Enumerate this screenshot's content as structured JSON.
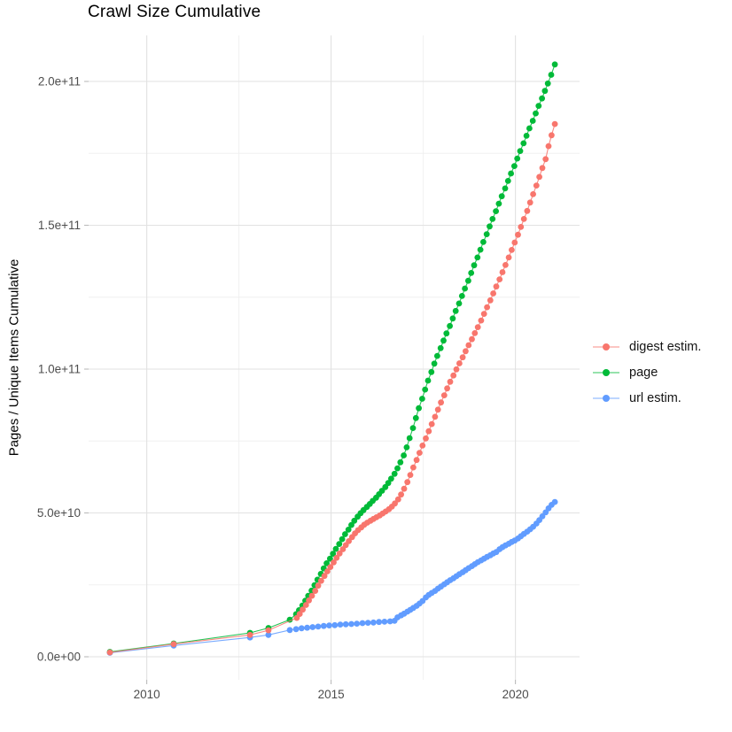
{
  "chart": {
    "title": "Crawl Size Cumulative",
    "y_axis": {
      "title": "Pages / Unique Items Cumulative",
      "tick_labels": [
        "0.0e+00",
        "5.0e+10",
        "1.0e+11",
        "1.5e+11",
        "2.0e+11"
      ],
      "tick_values_e9": [
        0,
        50,
        100,
        150,
        200
      ],
      "minor_values_e9": [
        25,
        75,
        125,
        175
      ]
    },
    "x_axis": {
      "tick_labels": [
        "2010",
        "2015",
        "2020"
      ],
      "tick_values": [
        2010,
        2015,
        2020
      ],
      "minor_values": [
        2012.5,
        2017.5
      ]
    }
  },
  "legend": {
    "items": [
      {
        "label": "digest estim."
      },
      {
        "label": "page"
      },
      {
        "label": "url estim."
      }
    ]
  },
  "colors": {
    "digest": "#F8766D",
    "page": "#00BA38",
    "url": "#619CFF",
    "grid_major": "#E2E2E2",
    "grid_minor": "#F0F0F0",
    "tick_mark": "#BBBBBB",
    "tick_text": "#4D4D4D"
  },
  "chart_data": {
    "type": "scatter",
    "title": "Crawl Size Cumulative",
    "xlabel": "",
    "ylabel": "Pages / Unique Items Cumulative",
    "x_unit": "year (decimal)",
    "y_unit": "items, value x 1e9",
    "xlim": [
      2008.4,
      2021.75
    ],
    "ylim_e9": [
      0,
      224
    ],
    "grid": "major+minor",
    "legend_position": "right",
    "series": [
      {
        "name": "digest estim.",
        "color": "#F8766D",
        "points": [
          [
            2009.0,
            1.5
          ],
          [
            2010.73,
            4.4
          ],
          [
            2012.8,
            7.6
          ],
          [
            2013.3,
            9.2
          ],
          [
            2014.07,
            13.5
          ],
          [
            2014.15,
            14.9
          ],
          [
            2014.23,
            16.4
          ],
          [
            2014.32,
            18.0
          ],
          [
            2014.4,
            19.6
          ],
          [
            2014.48,
            21.2
          ],
          [
            2014.57,
            22.9
          ],
          [
            2014.65,
            24.7
          ],
          [
            2014.73,
            26.4
          ],
          [
            2014.82,
            28.1
          ],
          [
            2014.9,
            29.7
          ],
          [
            2014.98,
            31.2
          ],
          [
            2015.07,
            32.8
          ],
          [
            2015.15,
            34.4
          ],
          [
            2015.23,
            35.9
          ],
          [
            2015.32,
            37.4
          ],
          [
            2015.4,
            38.8
          ],
          [
            2015.48,
            40.2
          ],
          [
            2015.57,
            41.6
          ],
          [
            2015.65,
            42.9
          ],
          [
            2015.73,
            44.0
          ],
          [
            2015.82,
            45.0
          ],
          [
            2015.9,
            45.9
          ],
          [
            2015.98,
            46.6
          ],
          [
            2016.07,
            47.3
          ],
          [
            2016.15,
            47.9
          ],
          [
            2016.23,
            48.5
          ],
          [
            2016.32,
            49.1
          ],
          [
            2016.4,
            49.8
          ],
          [
            2016.48,
            50.5
          ],
          [
            2016.57,
            51.3
          ],
          [
            2016.65,
            52.2
          ],
          [
            2016.73,
            53.3
          ],
          [
            2016.82,
            54.7
          ],
          [
            2016.9,
            56.4
          ],
          [
            2016.98,
            58.4
          ],
          [
            2017.07,
            60.7
          ],
          [
            2017.15,
            63.2
          ],
          [
            2017.23,
            65.8
          ],
          [
            2017.32,
            68.4
          ],
          [
            2017.4,
            70.9
          ],
          [
            2017.48,
            73.4
          ],
          [
            2017.57,
            75.9
          ],
          [
            2017.65,
            78.4
          ],
          [
            2017.73,
            80.9
          ],
          [
            2017.82,
            83.4
          ],
          [
            2017.9,
            85.9
          ],
          [
            2017.98,
            88.4
          ],
          [
            2018.07,
            90.9
          ],
          [
            2018.15,
            93.3
          ],
          [
            2018.23,
            95.6
          ],
          [
            2018.32,
            97.8
          ],
          [
            2018.4,
            99.9
          ],
          [
            2018.48,
            102.0
          ],
          [
            2018.57,
            104.1
          ],
          [
            2018.65,
            106.2
          ],
          [
            2018.73,
            108.3
          ],
          [
            2018.82,
            110.4
          ],
          [
            2018.9,
            112.5
          ],
          [
            2018.98,
            114.6
          ],
          [
            2019.07,
            116.9
          ],
          [
            2019.15,
            119.2
          ],
          [
            2019.23,
            121.5
          ],
          [
            2019.32,
            123.9
          ],
          [
            2019.4,
            126.3
          ],
          [
            2019.48,
            128.7
          ],
          [
            2019.57,
            131.2
          ],
          [
            2019.65,
            133.7
          ],
          [
            2019.73,
            136.2
          ],
          [
            2019.82,
            138.8
          ],
          [
            2019.9,
            141.4
          ],
          [
            2019.98,
            144.0
          ],
          [
            2020.07,
            146.7
          ],
          [
            2020.15,
            149.4
          ],
          [
            2020.23,
            152.2
          ],
          [
            2020.32,
            155.0
          ],
          [
            2020.4,
            157.9
          ],
          [
            2020.48,
            160.8
          ],
          [
            2020.57,
            163.8
          ],
          [
            2020.65,
            166.8
          ],
          [
            2020.73,
            169.9
          ],
          [
            2020.82,
            173.0
          ],
          [
            2020.9,
            177.5
          ],
          [
            2020.98,
            181.3
          ],
          [
            2021.07,
            185.2
          ]
        ]
      },
      {
        "name": "page",
        "color": "#00BA38",
        "points": [
          [
            2009.0,
            1.7
          ],
          [
            2010.73,
            4.6
          ],
          [
            2012.8,
            8.3
          ],
          [
            2013.3,
            10.0
          ],
          [
            2013.88,
            12.9
          ],
          [
            2014.05,
            14.8
          ],
          [
            2014.13,
            16.2
          ],
          [
            2014.22,
            17.8
          ],
          [
            2014.3,
            19.5
          ],
          [
            2014.38,
            21.2
          ],
          [
            2014.47,
            23.0
          ],
          [
            2014.55,
            24.9
          ],
          [
            2014.63,
            26.8
          ],
          [
            2014.72,
            28.8
          ],
          [
            2014.8,
            30.7
          ],
          [
            2014.88,
            32.5
          ],
          [
            2014.97,
            34.1
          ],
          [
            2015.05,
            35.8
          ],
          [
            2015.13,
            37.5
          ],
          [
            2015.22,
            39.2
          ],
          [
            2015.3,
            40.9
          ],
          [
            2015.38,
            42.6
          ],
          [
            2015.47,
            44.2
          ],
          [
            2015.55,
            45.8
          ],
          [
            2015.63,
            47.3
          ],
          [
            2015.72,
            48.7
          ],
          [
            2015.8,
            49.9
          ],
          [
            2015.88,
            51.0
          ],
          [
            2015.97,
            52.1
          ],
          [
            2016.05,
            53.1
          ],
          [
            2016.13,
            54.2
          ],
          [
            2016.22,
            55.3
          ],
          [
            2016.3,
            56.5
          ],
          [
            2016.38,
            57.7
          ],
          [
            2016.47,
            59.0
          ],
          [
            2016.55,
            60.4
          ],
          [
            2016.63,
            61.9
          ],
          [
            2016.72,
            63.6
          ],
          [
            2016.8,
            65.5
          ],
          [
            2016.88,
            67.6
          ],
          [
            2016.97,
            70.0
          ],
          [
            2017.05,
            72.8
          ],
          [
            2017.13,
            76.0
          ],
          [
            2017.22,
            79.5
          ],
          [
            2017.3,
            83.0
          ],
          [
            2017.38,
            86.4
          ],
          [
            2017.47,
            89.7
          ],
          [
            2017.55,
            92.9
          ],
          [
            2017.63,
            96.0
          ],
          [
            2017.72,
            99.0
          ],
          [
            2017.8,
            101.9
          ],
          [
            2017.88,
            104.6
          ],
          [
            2017.97,
            107.3
          ],
          [
            2018.05,
            109.9
          ],
          [
            2018.13,
            112.4
          ],
          [
            2018.22,
            115.0
          ],
          [
            2018.3,
            117.6
          ],
          [
            2018.38,
            120.2
          ],
          [
            2018.47,
            122.8
          ],
          [
            2018.55,
            125.4
          ],
          [
            2018.63,
            128.0
          ],
          [
            2018.72,
            130.7
          ],
          [
            2018.8,
            133.4
          ],
          [
            2018.88,
            136.1
          ],
          [
            2018.97,
            138.8
          ],
          [
            2019.05,
            141.5
          ],
          [
            2019.13,
            144.2
          ],
          [
            2019.22,
            146.9
          ],
          [
            2019.3,
            149.6
          ],
          [
            2019.38,
            152.2
          ],
          [
            2019.47,
            154.9
          ],
          [
            2019.55,
            157.5
          ],
          [
            2019.63,
            160.1
          ],
          [
            2019.72,
            162.8
          ],
          [
            2019.8,
            165.4
          ],
          [
            2019.88,
            168.0
          ],
          [
            2019.97,
            170.6
          ],
          [
            2020.05,
            173.2
          ],
          [
            2020.13,
            175.8
          ],
          [
            2020.22,
            178.5
          ],
          [
            2020.3,
            181.1
          ],
          [
            2020.38,
            183.7
          ],
          [
            2020.47,
            186.3
          ],
          [
            2020.55,
            188.9
          ],
          [
            2020.63,
            191.5
          ],
          [
            2020.72,
            194.1
          ],
          [
            2020.8,
            196.7
          ],
          [
            2020.88,
            199.3
          ],
          [
            2020.97,
            202.3
          ],
          [
            2021.07,
            205.9
          ]
        ]
      },
      {
        "name": "url estim.",
        "color": "#619CFF",
        "points": [
          [
            2009.0,
            1.4
          ],
          [
            2010.73,
            3.9
          ],
          [
            2012.8,
            6.7
          ],
          [
            2013.3,
            7.6
          ],
          [
            2013.88,
            9.3
          ],
          [
            2014.05,
            9.6
          ],
          [
            2014.2,
            9.9
          ],
          [
            2014.35,
            10.1
          ],
          [
            2014.5,
            10.3
          ],
          [
            2014.65,
            10.5
          ],
          [
            2014.8,
            10.7
          ],
          [
            2014.95,
            10.9
          ],
          [
            2015.1,
            11.0
          ],
          [
            2015.25,
            11.2
          ],
          [
            2015.4,
            11.3
          ],
          [
            2015.55,
            11.4
          ],
          [
            2015.7,
            11.5
          ],
          [
            2015.85,
            11.7
          ],
          [
            2016.0,
            11.8
          ],
          [
            2016.15,
            11.9
          ],
          [
            2016.3,
            12.1
          ],
          [
            2016.45,
            12.2
          ],
          [
            2016.6,
            12.3
          ],
          [
            2016.72,
            12.5
          ],
          [
            2016.8,
            13.7
          ],
          [
            2016.9,
            14.4
          ],
          [
            2016.98,
            15.0
          ],
          [
            2017.07,
            15.7
          ],
          [
            2017.15,
            16.3
          ],
          [
            2017.23,
            17.0
          ],
          [
            2017.32,
            17.7
          ],
          [
            2017.4,
            18.5
          ],
          [
            2017.48,
            19.4
          ],
          [
            2017.57,
            20.6
          ],
          [
            2017.65,
            21.5
          ],
          [
            2017.73,
            22.2
          ],
          [
            2017.82,
            22.9
          ],
          [
            2017.9,
            23.7
          ],
          [
            2017.98,
            24.4
          ],
          [
            2018.07,
            25.2
          ],
          [
            2018.15,
            25.9
          ],
          [
            2018.23,
            26.6
          ],
          [
            2018.32,
            27.3
          ],
          [
            2018.4,
            28.0
          ],
          [
            2018.48,
            28.7
          ],
          [
            2018.57,
            29.4
          ],
          [
            2018.65,
            30.1
          ],
          [
            2018.73,
            30.8
          ],
          [
            2018.82,
            31.5
          ],
          [
            2018.9,
            32.2
          ],
          [
            2018.98,
            32.9
          ],
          [
            2019.07,
            33.5
          ],
          [
            2019.15,
            34.1
          ],
          [
            2019.23,
            34.7
          ],
          [
            2019.32,
            35.3
          ],
          [
            2019.4,
            35.9
          ],
          [
            2019.48,
            36.4
          ],
          [
            2019.57,
            37.4
          ],
          [
            2019.65,
            38.1
          ],
          [
            2019.73,
            38.7
          ],
          [
            2019.82,
            39.3
          ],
          [
            2019.9,
            39.9
          ],
          [
            2019.98,
            40.4
          ],
          [
            2020.07,
            41.1
          ],
          [
            2020.15,
            41.9
          ],
          [
            2020.23,
            42.7
          ],
          [
            2020.32,
            43.5
          ],
          [
            2020.4,
            44.3
          ],
          [
            2020.48,
            45.2
          ],
          [
            2020.57,
            46.3
          ],
          [
            2020.65,
            47.5
          ],
          [
            2020.73,
            48.8
          ],
          [
            2020.82,
            50.2
          ],
          [
            2020.9,
            51.6
          ],
          [
            2020.98,
            52.8
          ],
          [
            2021.07,
            53.8
          ]
        ]
      }
    ]
  }
}
